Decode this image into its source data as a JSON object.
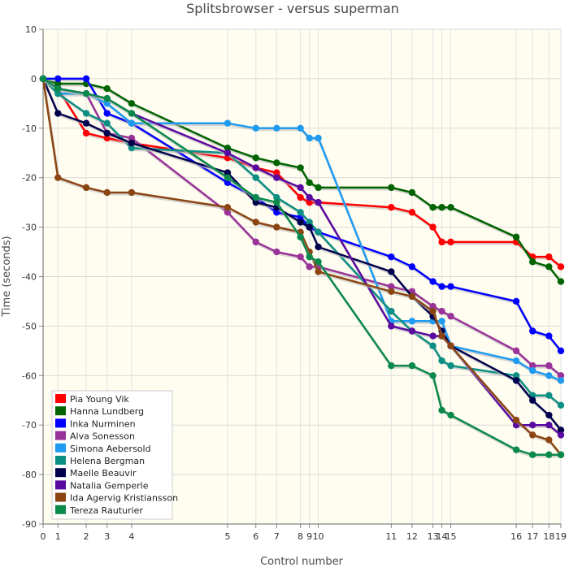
{
  "chart_data": {
    "type": "line",
    "title": "Splitsbrowser - versus superman",
    "xlabel": "Control number",
    "ylabel": "Time (seconds)",
    "ylim": [
      -90,
      10
    ],
    "xlim": [
      0,
      19
    ],
    "yticks": [
      10,
      0,
      -10,
      -20,
      -30,
      -40,
      -50,
      -60,
      -70,
      -80,
      -90
    ],
    "xticks": [
      {
        "label": "0",
        "x": 0
      },
      {
        "label": "1",
        "x": 1
      },
      {
        "label": "2",
        "x": 2
      },
      {
        "label": "3",
        "x": 3
      },
      {
        "label": "4",
        "x": 4
      },
      {
        "label": "5",
        "x": 5
      },
      {
        "label": "6",
        "x": 6
      },
      {
        "label": "7",
        "x": 7
      },
      {
        "label": "8",
        "x": 8
      },
      {
        "label": "9",
        "x": 9
      },
      {
        "label": "10",
        "x": 10
      },
      {
        "label": "11",
        "x": 11
      },
      {
        "label": "12",
        "x": 12
      },
      {
        "label": "13",
        "x": 13
      },
      {
        "label": "14",
        "x": 14
      },
      {
        "label": "15",
        "x": 15
      },
      {
        "label": "16",
        "x": 16
      },
      {
        "label": "17",
        "x": 17
      },
      {
        "label": "18",
        "x": 18
      },
      {
        "label": "19",
        "x": 19
      }
    ],
    "x": [
      0,
      1,
      2,
      3,
      4,
      5,
      6,
      7,
      8,
      9,
      10,
      11,
      12,
      13,
      14,
      15,
      16,
      17,
      18,
      19
    ],
    "x_cumulative_time_fraction": [
      0,
      0.0287,
      0.0833,
      0.1236,
      0.171,
      0.3563,
      0.4109,
      0.4511,
      0.4971,
      0.5144,
      0.5315,
      0.6724,
      0.7126,
      0.7529,
      0.7701,
      0.7874,
      0.9138,
      0.9454,
      0.977,
      1.0
    ],
    "grid": true,
    "legend_position": "bottom-left",
    "series": [
      {
        "name": "Pia Young Vik",
        "color": "#ff0000",
        "values": [
          0,
          -2,
          -11,
          -12,
          -13,
          -16,
          -18,
          -19,
          -24,
          -25,
          -25,
          -26,
          -27,
          -30,
          -33,
          -33,
          -33,
          -36,
          -36,
          -38
        ]
      },
      {
        "name": "Hanna Lundberg",
        "color": "#006400",
        "values": [
          0,
          -1,
          -1,
          -2,
          -5,
          -14,
          -16,
          -17,
          -18,
          -21,
          -22,
          -22,
          -23,
          -26,
          -26,
          -26,
          -32,
          -37,
          -38,
          -41
        ]
      },
      {
        "name": "Inka Nurminen",
        "color": "#0000ff",
        "values": [
          0,
          0,
          0,
          -7,
          -9,
          -21,
          -24,
          -27,
          -28,
          -30,
          -31,
          -36,
          -38,
          -41,
          -42,
          -42,
          -45,
          -51,
          -52,
          -55
        ]
      },
      {
        "name": "Alva Sonesson",
        "color": "#993399",
        "values": [
          0,
          -2,
          -3,
          -11,
          -12,
          -27,
          -33,
          -35,
          -36,
          -38,
          -38,
          -42,
          -43,
          -46,
          -47,
          -48,
          -55,
          -58,
          -58,
          -60
        ]
      },
      {
        "name": "Simona Aebersold",
        "color": "#1e9bf0",
        "values": [
          0,
          -3,
          -3,
          -5,
          -9,
          -9,
          -10,
          -10,
          -10,
          -12,
          -12,
          -49,
          -49,
          -49,
          -49,
          -54,
          -57,
          -59,
          -60,
          -61
        ]
      },
      {
        "name": "Helena Bergman",
        "color": "#0b8f82",
        "values": [
          0,
          -3,
          -7,
          -9,
          -14,
          -15,
          -20,
          -24,
          -27,
          -29,
          -31,
          -47,
          -51,
          -54,
          -57,
          -58,
          -60,
          -64,
          -64,
          -66
        ]
      },
      {
        "name": "Maelle Beauvir",
        "color": "#00004d",
        "values": [
          0,
          -7,
          -9,
          -11,
          -13,
          -19,
          -25,
          -26,
          -29,
          -30,
          -34,
          -39,
          -44,
          -48,
          -51,
          -54,
          -61,
          -65,
          -68,
          -71
        ]
      },
      {
        "name": "Natalia Gemperle",
        "color": "#5a0aa0",
        "values": [
          0,
          -2,
          -3,
          -4,
          -7,
          -15,
          -18,
          -20,
          -22,
          -24,
          -25,
          -50,
          -51,
          -52,
          -52,
          -54,
          -70,
          -70,
          -70,
          -72
        ]
      },
      {
        "name": "Ida Agervig Kristiansson",
        "color": "#8b4513",
        "values": [
          0,
          -20,
          -22,
          -23,
          -23,
          -26,
          -29,
          -30,
          -31,
          -35,
          -39,
          -43,
          -44,
          -47,
          -52,
          -54,
          -69,
          -72,
          -73,
          -76
        ]
      },
      {
        "name": "Tereza Rauturier",
        "color": "#0a8a4a",
        "values": [
          0,
          -2,
          -3,
          -4,
          -7,
          -20,
          -24,
          -25,
          -32,
          -36,
          -37,
          -58,
          -58,
          -60,
          -67,
          -68,
          -75,
          -76,
          -76,
          -76
        ]
      }
    ]
  }
}
